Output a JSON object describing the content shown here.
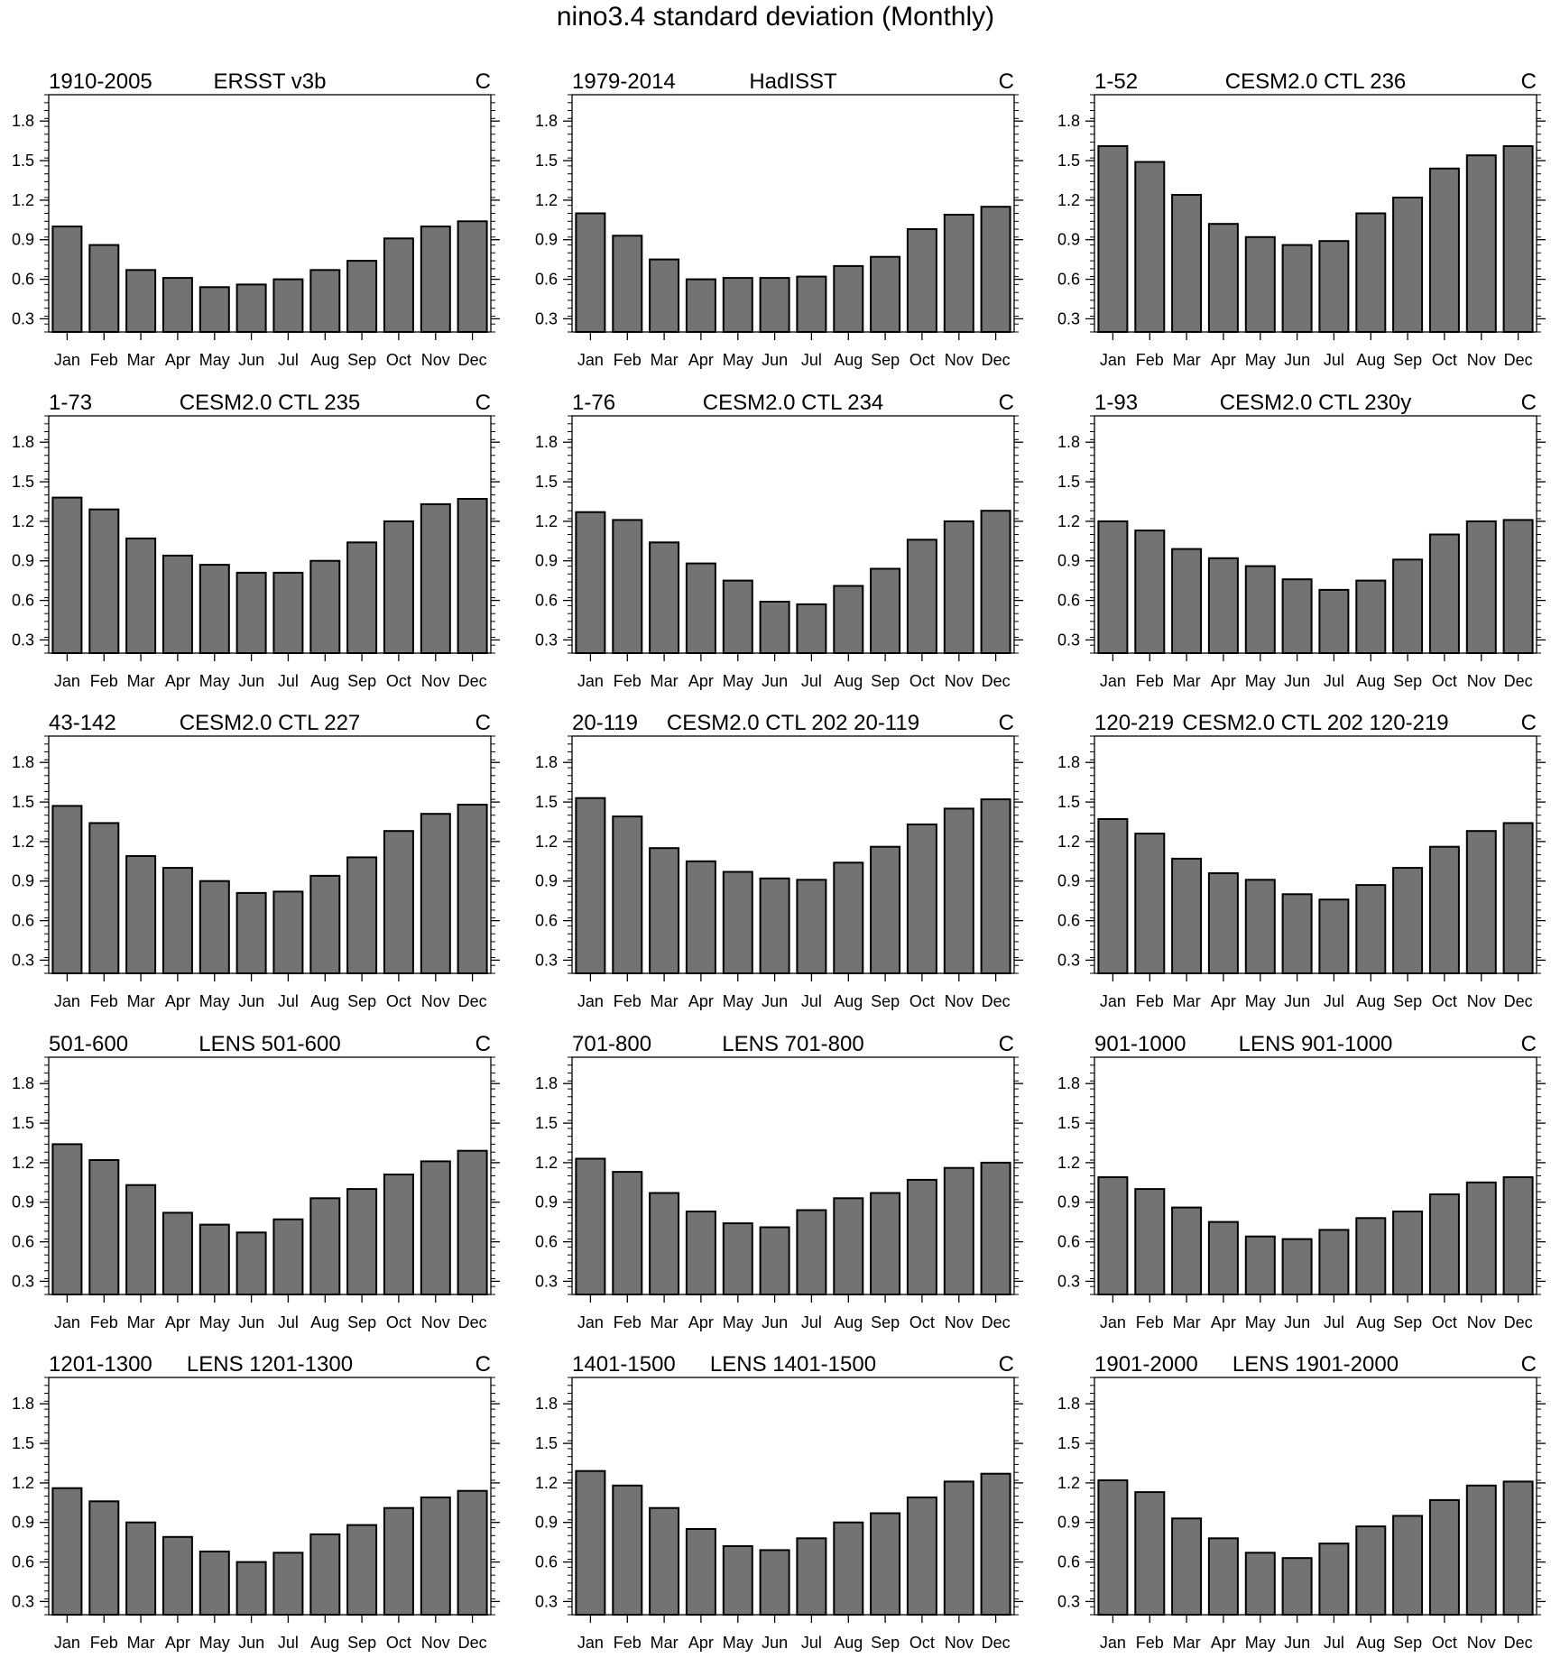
{
  "figure_title": "nino3.4 standard deviation (Monthly)",
  "chart_data": [
    {
      "type": "bar",
      "left_label": "1910-2005",
      "title": "ERSST v3b",
      "right_label": "C",
      "categories": [
        "Jan",
        "Feb",
        "Mar",
        "Apr",
        "May",
        "Jun",
        "Jul",
        "Aug",
        "Sep",
        "Oct",
        "Nov",
        "Dec"
      ],
      "values": [
        1.0,
        0.86,
        0.67,
        0.61,
        0.54,
        0.56,
        0.6,
        0.67,
        0.74,
        0.91,
        1.0,
        1.04
      ],
      "yticks": [
        0.3,
        0.6,
        0.9,
        1.2,
        1.5,
        1.8
      ],
      "ylim": [
        0.2,
        2.0
      ]
    },
    {
      "type": "bar",
      "left_label": "1979-2014",
      "title": "HadISST",
      "right_label": "C",
      "categories": [
        "Jan",
        "Feb",
        "Mar",
        "Apr",
        "May",
        "Jun",
        "Jul",
        "Aug",
        "Sep",
        "Oct",
        "Nov",
        "Dec"
      ],
      "values": [
        1.1,
        0.93,
        0.75,
        0.6,
        0.61,
        0.61,
        0.62,
        0.7,
        0.77,
        0.98,
        1.09,
        1.15
      ],
      "yticks": [
        0.3,
        0.6,
        0.9,
        1.2,
        1.5,
        1.8
      ],
      "ylim": [
        0.2,
        2.0
      ]
    },
    {
      "type": "bar",
      "left_label": "1-52",
      "title": "CESM2.0 CTL 236",
      "right_label": "C",
      "categories": [
        "Jan",
        "Feb",
        "Mar",
        "Apr",
        "May",
        "Jun",
        "Jul",
        "Aug",
        "Sep",
        "Oct",
        "Nov",
        "Dec"
      ],
      "values": [
        1.61,
        1.49,
        1.24,
        1.02,
        0.92,
        0.86,
        0.89,
        1.1,
        1.22,
        1.44,
        1.54,
        1.61
      ],
      "yticks": [
        0.3,
        0.6,
        0.9,
        1.2,
        1.5,
        1.8
      ],
      "ylim": [
        0.2,
        2.0
      ]
    },
    {
      "type": "bar",
      "left_label": "1-73",
      "title": "CESM2.0 CTL 235",
      "right_label": "C",
      "categories": [
        "Jan",
        "Feb",
        "Mar",
        "Apr",
        "May",
        "Jun",
        "Jul",
        "Aug",
        "Sep",
        "Oct",
        "Nov",
        "Dec"
      ],
      "values": [
        1.38,
        1.29,
        1.07,
        0.94,
        0.87,
        0.81,
        0.81,
        0.9,
        1.04,
        1.2,
        1.33,
        1.37
      ],
      "yticks": [
        0.3,
        0.6,
        0.9,
        1.2,
        1.5,
        1.8
      ],
      "ylim": [
        0.2,
        2.0
      ]
    },
    {
      "type": "bar",
      "left_label": "1-76",
      "title": "CESM2.0 CTL 234",
      "right_label": "C",
      "categories": [
        "Jan",
        "Feb",
        "Mar",
        "Apr",
        "May",
        "Jun",
        "Jul",
        "Aug",
        "Sep",
        "Oct",
        "Nov",
        "Dec"
      ],
      "values": [
        1.27,
        1.21,
        1.04,
        0.88,
        0.75,
        0.59,
        0.57,
        0.71,
        0.84,
        1.06,
        1.2,
        1.28
      ],
      "yticks": [
        0.3,
        0.6,
        0.9,
        1.2,
        1.5,
        1.8
      ],
      "ylim": [
        0.2,
        2.0
      ]
    },
    {
      "type": "bar",
      "left_label": "1-93",
      "title": "CESM2.0 CTL 230y",
      "right_label": "C",
      "categories": [
        "Jan",
        "Feb",
        "Mar",
        "Apr",
        "May",
        "Jun",
        "Jul",
        "Aug",
        "Sep",
        "Oct",
        "Nov",
        "Dec"
      ],
      "values": [
        1.2,
        1.13,
        0.99,
        0.92,
        0.86,
        0.76,
        0.68,
        0.75,
        0.91,
        1.1,
        1.2,
        1.21
      ],
      "yticks": [
        0.3,
        0.6,
        0.9,
        1.2,
        1.5,
        1.8
      ],
      "ylim": [
        0.2,
        2.0
      ]
    },
    {
      "type": "bar",
      "left_label": "43-142",
      "title": "CESM2.0 CTL 227",
      "right_label": "C",
      "categories": [
        "Jan",
        "Feb",
        "Mar",
        "Apr",
        "May",
        "Jun",
        "Jul",
        "Aug",
        "Sep",
        "Oct",
        "Nov",
        "Dec"
      ],
      "values": [
        1.47,
        1.34,
        1.09,
        1.0,
        0.9,
        0.81,
        0.82,
        0.94,
        1.08,
        1.28,
        1.41,
        1.48
      ],
      "yticks": [
        0.3,
        0.6,
        0.9,
        1.2,
        1.5,
        1.8
      ],
      "ylim": [
        0.2,
        2.0
      ]
    },
    {
      "type": "bar",
      "left_label": "20-119",
      "title": "CESM2.0 CTL 202 20-119",
      "right_label": "C",
      "categories": [
        "Jan",
        "Feb",
        "Mar",
        "Apr",
        "May",
        "Jun",
        "Jul",
        "Aug",
        "Sep",
        "Oct",
        "Nov",
        "Dec"
      ],
      "values": [
        1.53,
        1.39,
        1.15,
        1.05,
        0.97,
        0.92,
        0.91,
        1.04,
        1.16,
        1.33,
        1.45,
        1.52
      ],
      "yticks": [
        0.3,
        0.6,
        0.9,
        1.2,
        1.5,
        1.8
      ],
      "ylim": [
        0.2,
        2.0
      ]
    },
    {
      "type": "bar",
      "left_label": "120-219",
      "title": "CESM2.0 CTL 202 120-219",
      "right_label": "C",
      "categories": [
        "Jan",
        "Feb",
        "Mar",
        "Apr",
        "May",
        "Jun",
        "Jul",
        "Aug",
        "Sep",
        "Oct",
        "Nov",
        "Dec"
      ],
      "values": [
        1.37,
        1.26,
        1.07,
        0.96,
        0.91,
        0.8,
        0.76,
        0.87,
        1.0,
        1.16,
        1.28,
        1.34
      ],
      "yticks": [
        0.3,
        0.6,
        0.9,
        1.2,
        1.5,
        1.8
      ],
      "ylim": [
        0.2,
        2.0
      ]
    },
    {
      "type": "bar",
      "left_label": "501-600",
      "title": "LENS 501-600",
      "right_label": "C",
      "categories": [
        "Jan",
        "Feb",
        "Mar",
        "Apr",
        "May",
        "Jun",
        "Jul",
        "Aug",
        "Sep",
        "Oct",
        "Nov",
        "Dec"
      ],
      "values": [
        1.34,
        1.22,
        1.03,
        0.82,
        0.73,
        0.67,
        0.77,
        0.93,
        1.0,
        1.11,
        1.21,
        1.29
      ],
      "yticks": [
        0.3,
        0.6,
        0.9,
        1.2,
        1.5,
        1.8
      ],
      "ylim": [
        0.2,
        2.0
      ]
    },
    {
      "type": "bar",
      "left_label": "701-800",
      "title": "LENS 701-800",
      "right_label": "C",
      "categories": [
        "Jan",
        "Feb",
        "Mar",
        "Apr",
        "May",
        "Jun",
        "Jul",
        "Aug",
        "Sep",
        "Oct",
        "Nov",
        "Dec"
      ],
      "values": [
        1.23,
        1.13,
        0.97,
        0.83,
        0.74,
        0.71,
        0.84,
        0.93,
        0.97,
        1.07,
        1.16,
        1.2
      ],
      "yticks": [
        0.3,
        0.6,
        0.9,
        1.2,
        1.5,
        1.8
      ],
      "ylim": [
        0.2,
        2.0
      ]
    },
    {
      "type": "bar",
      "left_label": "901-1000",
      "title": "LENS 901-1000",
      "right_label": "C",
      "categories": [
        "Jan",
        "Feb",
        "Mar",
        "Apr",
        "May",
        "Jun",
        "Jul",
        "Aug",
        "Sep",
        "Oct",
        "Nov",
        "Dec"
      ],
      "values": [
        1.09,
        1.0,
        0.86,
        0.75,
        0.64,
        0.62,
        0.69,
        0.78,
        0.83,
        0.96,
        1.05,
        1.09
      ],
      "yticks": [
        0.3,
        0.6,
        0.9,
        1.2,
        1.5,
        1.8
      ],
      "ylim": [
        0.2,
        2.0
      ]
    },
    {
      "type": "bar",
      "left_label": "1201-1300",
      "title": "LENS 1201-1300",
      "right_label": "C",
      "categories": [
        "Jan",
        "Feb",
        "Mar",
        "Apr",
        "May",
        "Jun",
        "Jul",
        "Aug",
        "Sep",
        "Oct",
        "Nov",
        "Dec"
      ],
      "values": [
        1.16,
        1.06,
        0.9,
        0.79,
        0.68,
        0.6,
        0.67,
        0.81,
        0.88,
        1.01,
        1.09,
        1.14
      ],
      "yticks": [
        0.3,
        0.6,
        0.9,
        1.2,
        1.5,
        1.8
      ],
      "ylim": [
        0.2,
        2.0
      ]
    },
    {
      "type": "bar",
      "left_label": "1401-1500",
      "title": "LENS 1401-1500",
      "right_label": "C",
      "categories": [
        "Jan",
        "Feb",
        "Mar",
        "Apr",
        "May",
        "Jun",
        "Jul",
        "Aug",
        "Sep",
        "Oct",
        "Nov",
        "Dec"
      ],
      "values": [
        1.29,
        1.18,
        1.01,
        0.85,
        0.72,
        0.69,
        0.78,
        0.9,
        0.97,
        1.09,
        1.21,
        1.27
      ],
      "yticks": [
        0.3,
        0.6,
        0.9,
        1.2,
        1.5,
        1.8
      ],
      "ylim": [
        0.2,
        2.0
      ]
    },
    {
      "type": "bar",
      "left_label": "1901-2000",
      "title": "LENS 1901-2000",
      "right_label": "C",
      "categories": [
        "Jan",
        "Feb",
        "Mar",
        "Apr",
        "May",
        "Jun",
        "Jul",
        "Aug",
        "Sep",
        "Oct",
        "Nov",
        "Dec"
      ],
      "values": [
        1.22,
        1.13,
        0.93,
        0.78,
        0.67,
        0.63,
        0.74,
        0.87,
        0.95,
        1.07,
        1.18,
        1.21
      ],
      "yticks": [
        0.3,
        0.6,
        0.9,
        1.2,
        1.5,
        1.8
      ],
      "ylim": [
        0.2,
        2.0
      ]
    }
  ],
  "colors": {
    "bar_fill": "#737373",
    "bar_stroke": "#000000",
    "axis": "#000000"
  }
}
